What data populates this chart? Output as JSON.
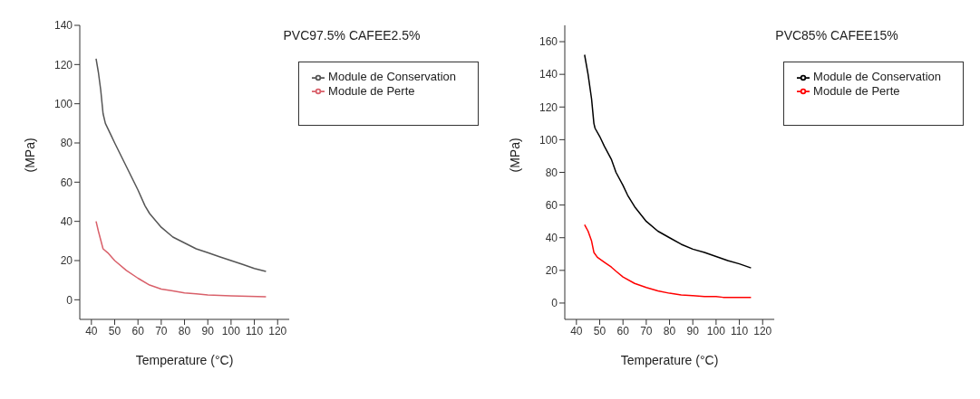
{
  "chart_data": [
    {
      "type": "line",
      "title": "PVC97.5% CAFEE2.5%",
      "xlabel": "Temperature (°C)",
      "ylabel": "(MPa)",
      "xlim": [
        35,
        125
      ],
      "xticks": [
        40,
        50,
        60,
        70,
        80,
        90,
        100,
        110,
        120
      ],
      "ylim": [
        -10,
        140
      ],
      "yticks": [
        0,
        20,
        40,
        60,
        80,
        100,
        120,
        140
      ],
      "grid": false,
      "legend": "top right",
      "series": [
        {
          "name": "Module de Conservation",
          "color": "#555555",
          "x": [
            42,
            43,
            44,
            45,
            46,
            48,
            50,
            55,
            60,
            63,
            65,
            70,
            75,
            80,
            85,
            90,
            95,
            100,
            105,
            110,
            115
          ],
          "values": [
            123,
            116,
            107,
            95,
            90,
            85,
            80,
            68,
            56,
            48,
            44,
            37,
            32,
            29,
            26,
            24,
            22,
            20,
            18,
            16,
            14.5
          ]
        },
        {
          "name": "Module de Perte",
          "color": "#d9606a",
          "x": [
            42,
            43,
            45,
            47,
            50,
            55,
            60,
            65,
            70,
            75,
            80,
            85,
            90,
            100,
            115
          ],
          "values": [
            40,
            35,
            26,
            24,
            20,
            15,
            11,
            7.5,
            5.5,
            4.5,
            3.5,
            3,
            2.5,
            2,
            1.5
          ]
        }
      ]
    },
    {
      "type": "line",
      "title": "PVC85% CAFEE15%",
      "xlabel": "Temperature (°C)",
      "ylabel": "(MPa)",
      "xlim": [
        35,
        125
      ],
      "xticks": [
        40,
        50,
        60,
        70,
        80,
        90,
        100,
        110,
        120
      ],
      "ylim": [
        -10,
        170
      ],
      "yticks": [
        0,
        20,
        40,
        60,
        80,
        100,
        120,
        140,
        160
      ],
      "grid": false,
      "legend": "top right",
      "series": [
        {
          "name": "Module de Conservation",
          "color": "#000000",
          "x": [
            43.5,
            45,
            46.5,
            47.5,
            48,
            50,
            52,
            55,
            57,
            60,
            62,
            65,
            70,
            75,
            80,
            85,
            90,
            95,
            100,
            105,
            110,
            115
          ],
          "values": [
            152,
            140,
            125,
            110,
            107,
            102,
            96,
            88,
            80,
            72,
            66,
            59,
            50,
            44,
            40,
            36,
            33,
            31,
            28.5,
            26,
            24,
            21.5
          ]
        },
        {
          "name": "Module de Perte",
          "color": "#ff0000",
          "x": [
            43.5,
            45,
            46.5,
            47.5,
            49,
            52,
            55,
            57,
            60,
            65,
            70,
            75,
            80,
            85,
            90,
            95,
            100,
            103,
            115
          ],
          "values": [
            48,
            44,
            38,
            31,
            28,
            25,
            22,
            19.5,
            16,
            12,
            9.5,
            7.5,
            6,
            5,
            4.5,
            4,
            4,
            3.5,
            3.5
          ]
        }
      ]
    }
  ]
}
